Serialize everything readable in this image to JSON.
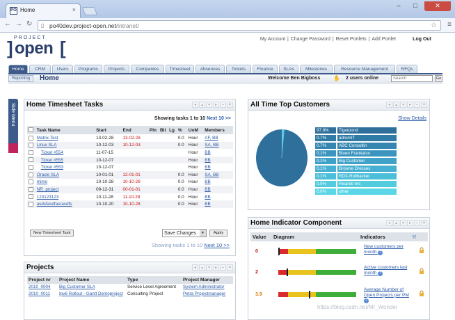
{
  "browser": {
    "tab_title": "Home",
    "tab_close": "×",
    "favicon_text": "PO",
    "url_host": "po40dev.project-open.net",
    "url_path": "/intranet/",
    "back": "←",
    "forward": "→",
    "reload": "↻",
    "star": "☆",
    "menu": "≡",
    "min": "–",
    "max": "□",
    "close": "✕"
  },
  "logo": {
    "small": "PROJECT",
    "big": "open",
    "left": "]",
    "right": "["
  },
  "top_links": [
    "My Account",
    "Change Password",
    "Reset Portlets",
    "Add Portlet"
  ],
  "logout": "Log Out",
  "tabs": [
    {
      "label": "Home",
      "active": true
    },
    {
      "label": "CRM"
    },
    {
      "label": "Users"
    },
    {
      "label": "Programs"
    },
    {
      "label": "Projects"
    },
    {
      "label": "Companies"
    },
    {
      "label": "Timesheet"
    },
    {
      "label": "Absences"
    },
    {
      "label": "Tickets"
    },
    {
      "label": "Finance"
    },
    {
      "label": "SLAs"
    },
    {
      "label": "Milestones"
    },
    {
      "label": "Resource Management"
    },
    {
      "label": "RFQs"
    }
  ],
  "subbar": {
    "reporting": "Reporting",
    "page_title": "Home",
    "welcome": "Welcome Ben Bigboss",
    "users_online": "2 users online",
    "search_placeholder": "Search",
    "go": "Go"
  },
  "side_menu": {
    "label": "Side Menu"
  },
  "timesheet": {
    "title": "Home Timesheet Tasks",
    "showing": "Showing tasks 1 to 10",
    "next": "Next 10 >>",
    "columns": [
      "",
      "Task Name",
      "Start",
      "End",
      "Pln",
      "Bll",
      "Lg",
      "%",
      "UoM",
      "Members"
    ],
    "rows": [
      {
        "name": "Matrix-Test",
        "start": "13-02-28",
        "end": "13-02-28",
        "end_red": true,
        "pct": "0.0",
        "uom": "Hour",
        "members": "AF, BB",
        "indent": false
      },
      {
        "name": "Linux SLA",
        "start": "10-12-03",
        "end": "10-12-03",
        "end_red": true,
        "pct": "0.0",
        "uom": "Hour",
        "members": "SA, BB",
        "indent": false
      },
      {
        "name": "Ticket #554",
        "start": "11-07-15",
        "end": "",
        "end_red": false,
        "pct": "",
        "uom": "Hour",
        "members": "BB",
        "indent": true
      },
      {
        "name": "Ticket #555",
        "start": "10-12-07",
        "end": "",
        "end_red": false,
        "pct": "",
        "uom": "Hour",
        "members": "BB",
        "indent": true
      },
      {
        "name": "Ticket #553",
        "start": "10-12-07",
        "end": "",
        "end_red": false,
        "pct": "",
        "uom": "Hour",
        "members": "BB",
        "indent": true
      },
      {
        "name": "Oracle SLA",
        "start": "10-01-01",
        "end": "12-01-01",
        "end_red": true,
        "pct": "0.0",
        "uom": "Hour",
        "members": "SA, BB",
        "indent": false
      },
      {
        "name": "mimo",
        "start": "10-10-28",
        "end": "10-10-28",
        "end_red": true,
        "pct": "0.0",
        "uom": "Hour",
        "members": "BB",
        "indent": false
      },
      {
        "name": "NR_project",
        "start": "09-12-31",
        "end": "00-01-01",
        "end_red": true,
        "pct": "0.0",
        "uom": "Hour",
        "members": "BB",
        "indent": false
      },
      {
        "name": "123123123",
        "start": "10-11-28",
        "end": "11-10-28",
        "end_red": true,
        "pct": "0.0",
        "uom": "Hour",
        "members": "BB",
        "indent": false
      },
      {
        "name": "asdsfasdfasrasdfs",
        "start": "10-10-20",
        "end": "10-10-28",
        "end_red": true,
        "pct": "0.0",
        "uom": "Hour",
        "members": "BB",
        "indent": false
      }
    ],
    "new_task_button": "New Timesheet Task",
    "save_select": "Save Changes",
    "apply": "Apply",
    "showing_bottom": "Showing tasks 1 to 10",
    "next_bottom": "Next 10 >>"
  },
  "projects": {
    "title": "Projects",
    "columns": [
      "Project nr",
      "Project Name",
      "Type",
      "Project Manager"
    ],
    "rows": [
      {
        "nr": "2010_0004",
        "name": "Big Customer SLA",
        "type": "Service Level Agreement",
        "manager": "System Administrator"
      },
      {
        "nr": "2010_0011",
        "name": "Ipv6 Rollout - Gantt Demoproject",
        "type": "Consulting Project",
        "manager": "Petra Projectmanager"
      }
    ]
  },
  "customers": {
    "title": "All Time Top Customers",
    "show_details": "Show Details",
    "items": [
      {
        "pct": "97.8%",
        "name": "Tigerpond",
        "pct_color": "#2e6f9c",
        "name_color": "#2e6f9c"
      },
      {
        "pct": "0.7%",
        "name": "adromIT",
        "pct_color": "#2f7ba6",
        "name_color": "#2f7ba6"
      },
      {
        "pct": "0.7%",
        "name": "ABC Consultin",
        "pct_color": "#3587b2",
        "name_color": "#3587b2"
      },
      {
        "pct": "0.1%",
        "name": "Bluen Frankatso",
        "pct_color": "#3b95be",
        "name_color": "#3b95be"
      },
      {
        "pct": "0.1%",
        "name": "Big Customer",
        "pct_color": "#41a2c9",
        "name_color": "#41a2c9"
      },
      {
        "pct": "0.1%",
        "name": "Browne Dresses",
        "pct_color": "#45b0d2",
        "name_color": "#45b0d2"
      },
      {
        "pct": "0.1%",
        "name": "RDX-Rollbacker",
        "pct_color": "#4bbed9",
        "name_color": "#4bbed9"
      },
      {
        "pct": "0.0%",
        "name": "Ricardo Inc",
        "pct_color": "#52cbdf",
        "name_color": "#52cbdf"
      },
      {
        "pct": "0.0%",
        "name": "other",
        "pct_color": "#5ad6e6",
        "name_color": "#5ad6e6"
      }
    ]
  },
  "indicators": {
    "title": "Home Indicator Component",
    "columns": [
      "Value",
      "Diagram",
      "",
      "Indicators",
      ""
    ],
    "items": [
      {
        "value": "0",
        "value_color": "red",
        "label": "New customers per month",
        "marker": 0.0
      },
      {
        "value": "2",
        "value_color": "red",
        "label": "Active customers last month",
        "marker": 0.11
      },
      {
        "value": "3.9",
        "value_color": "orange",
        "label": "Average Number of Open Projects per PM",
        "marker": 0.39
      }
    ],
    "help": "?"
  },
  "watermark": "https://blog.csdn.net/Mr_Wonder"
}
